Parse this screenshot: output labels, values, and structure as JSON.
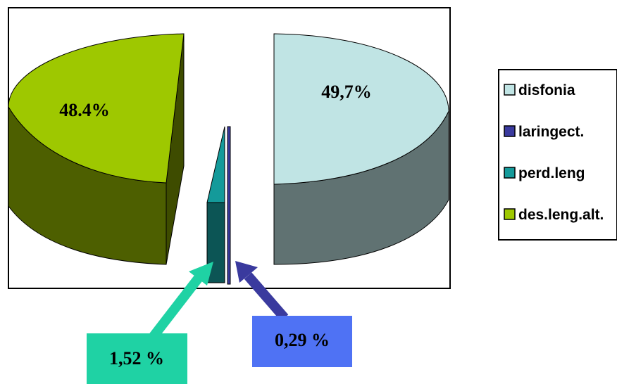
{
  "chart_data": {
    "type": "pie",
    "style": "3d-exploded",
    "categories": [
      "disfonia",
      "laringect.",
      "perd.leng",
      "des.leng.alt."
    ],
    "values": [
      49.7,
      0.29,
      1.52,
      48.4
    ],
    "data_labels": {
      "disfonia": "49,7%",
      "laringect.": "0,29 %",
      "perd.leng": "1,52 %",
      "des.leng.alt.": "48.4%"
    },
    "colors": {
      "disfonia": "#c0e4e4",
      "laringect.": "#3a3a9e",
      "perd.leng": "#149a9a",
      "des.leng.alt.": "#9ec800"
    },
    "callout_colors": {
      "perd.leng": "#1fd2a4",
      "laringect.": "#4f72f4"
    },
    "legend_position": "right"
  }
}
